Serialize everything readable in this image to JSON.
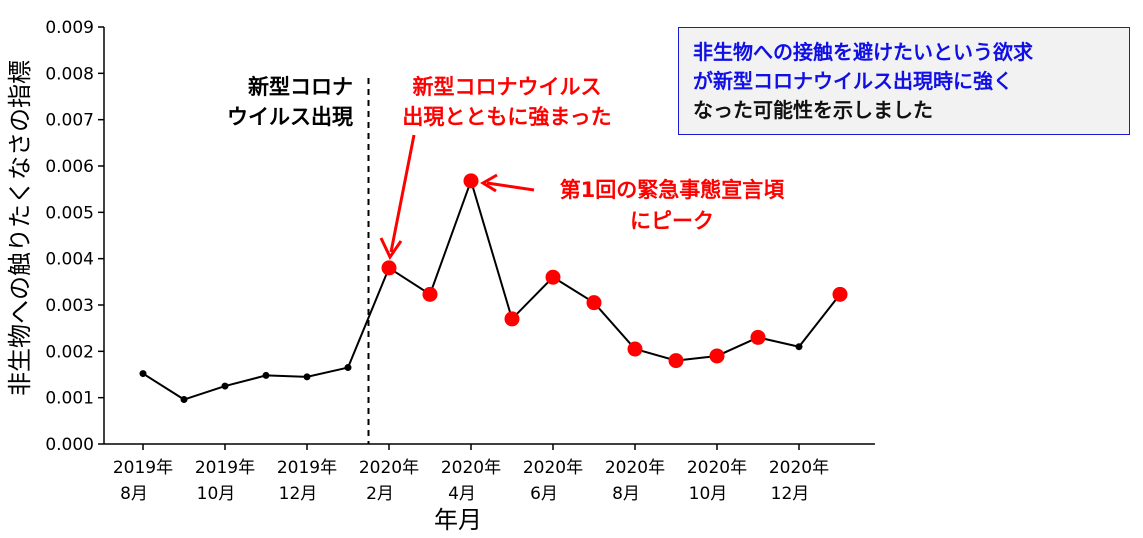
{
  "chart_data": {
    "type": "line",
    "xlabel": "年月",
    "ylabel": "非生物への触りたくなさの指標",
    "ylim": [
      0,
      0.009
    ],
    "yticks": [
      "0.000",
      "0.001",
      "0.002",
      "0.003",
      "0.004",
      "0.005",
      "0.006",
      "0.007",
      "0.008",
      "0.009"
    ],
    "xticks": [
      {
        "line1": "2019年",
        "line2": "8月"
      },
      {
        "line1": "2019年",
        "line2": "10月"
      },
      {
        "line1": "2019年",
        "line2": "12月"
      },
      {
        "line1": "2020年",
        "line2": "2月"
      },
      {
        "line1": "2020年",
        "line2": "4月"
      },
      {
        "line1": "2020年",
        "line2": "6月"
      },
      {
        "line1": "2020年",
        "line2": "8月"
      },
      {
        "line1": "2020年",
        "line2": "10月"
      },
      {
        "line1": "2020年",
        "line2": "12月"
      }
    ],
    "x": [
      "2019-08",
      "2019-09",
      "2019-10",
      "2019-11",
      "2019-12",
      "2020-01",
      "2020-02",
      "2020-03",
      "2020-04",
      "2020-05",
      "2020-06",
      "2020-07",
      "2020-08",
      "2020-09",
      "2020-10",
      "2020-11",
      "2020-12",
      "2021-01"
    ],
    "values": [
      0.00152,
      0.00096,
      0.00125,
      0.00148,
      0.00145,
      0.00165,
      0.0038,
      0.00323,
      0.00568,
      0.0027,
      0.0036,
      0.00305,
      0.00205,
      0.0018,
      0.0019,
      0.0023,
      0.0021,
      0.00323
    ],
    "highlighted": [
      false,
      false,
      false,
      false,
      false,
      false,
      true,
      true,
      true,
      true,
      true,
      true,
      true,
      true,
      true,
      true,
      false,
      true
    ],
    "line_color": "#000000",
    "highlight_color": "#ff0000",
    "vline_at": "2020-01-15",
    "grid": false
  },
  "annotations": {
    "emergence_label": [
      "新型コロナ",
      "ウイルス出現"
    ],
    "rise_label": [
      "新型コロナウイルス",
      "出現とともに強まった"
    ],
    "peak_label": [
      "第1回の緊急事態宣言頃",
      "にピーク"
    ]
  },
  "note": {
    "line1": "非生物への接触を避けたいという欲求",
    "line2": "が新型コロナウイルス出現時に強く",
    "line3": "なった可能性を示しました"
  },
  "colors": {
    "red": "#ff0000",
    "blue": "#1010e6"
  }
}
